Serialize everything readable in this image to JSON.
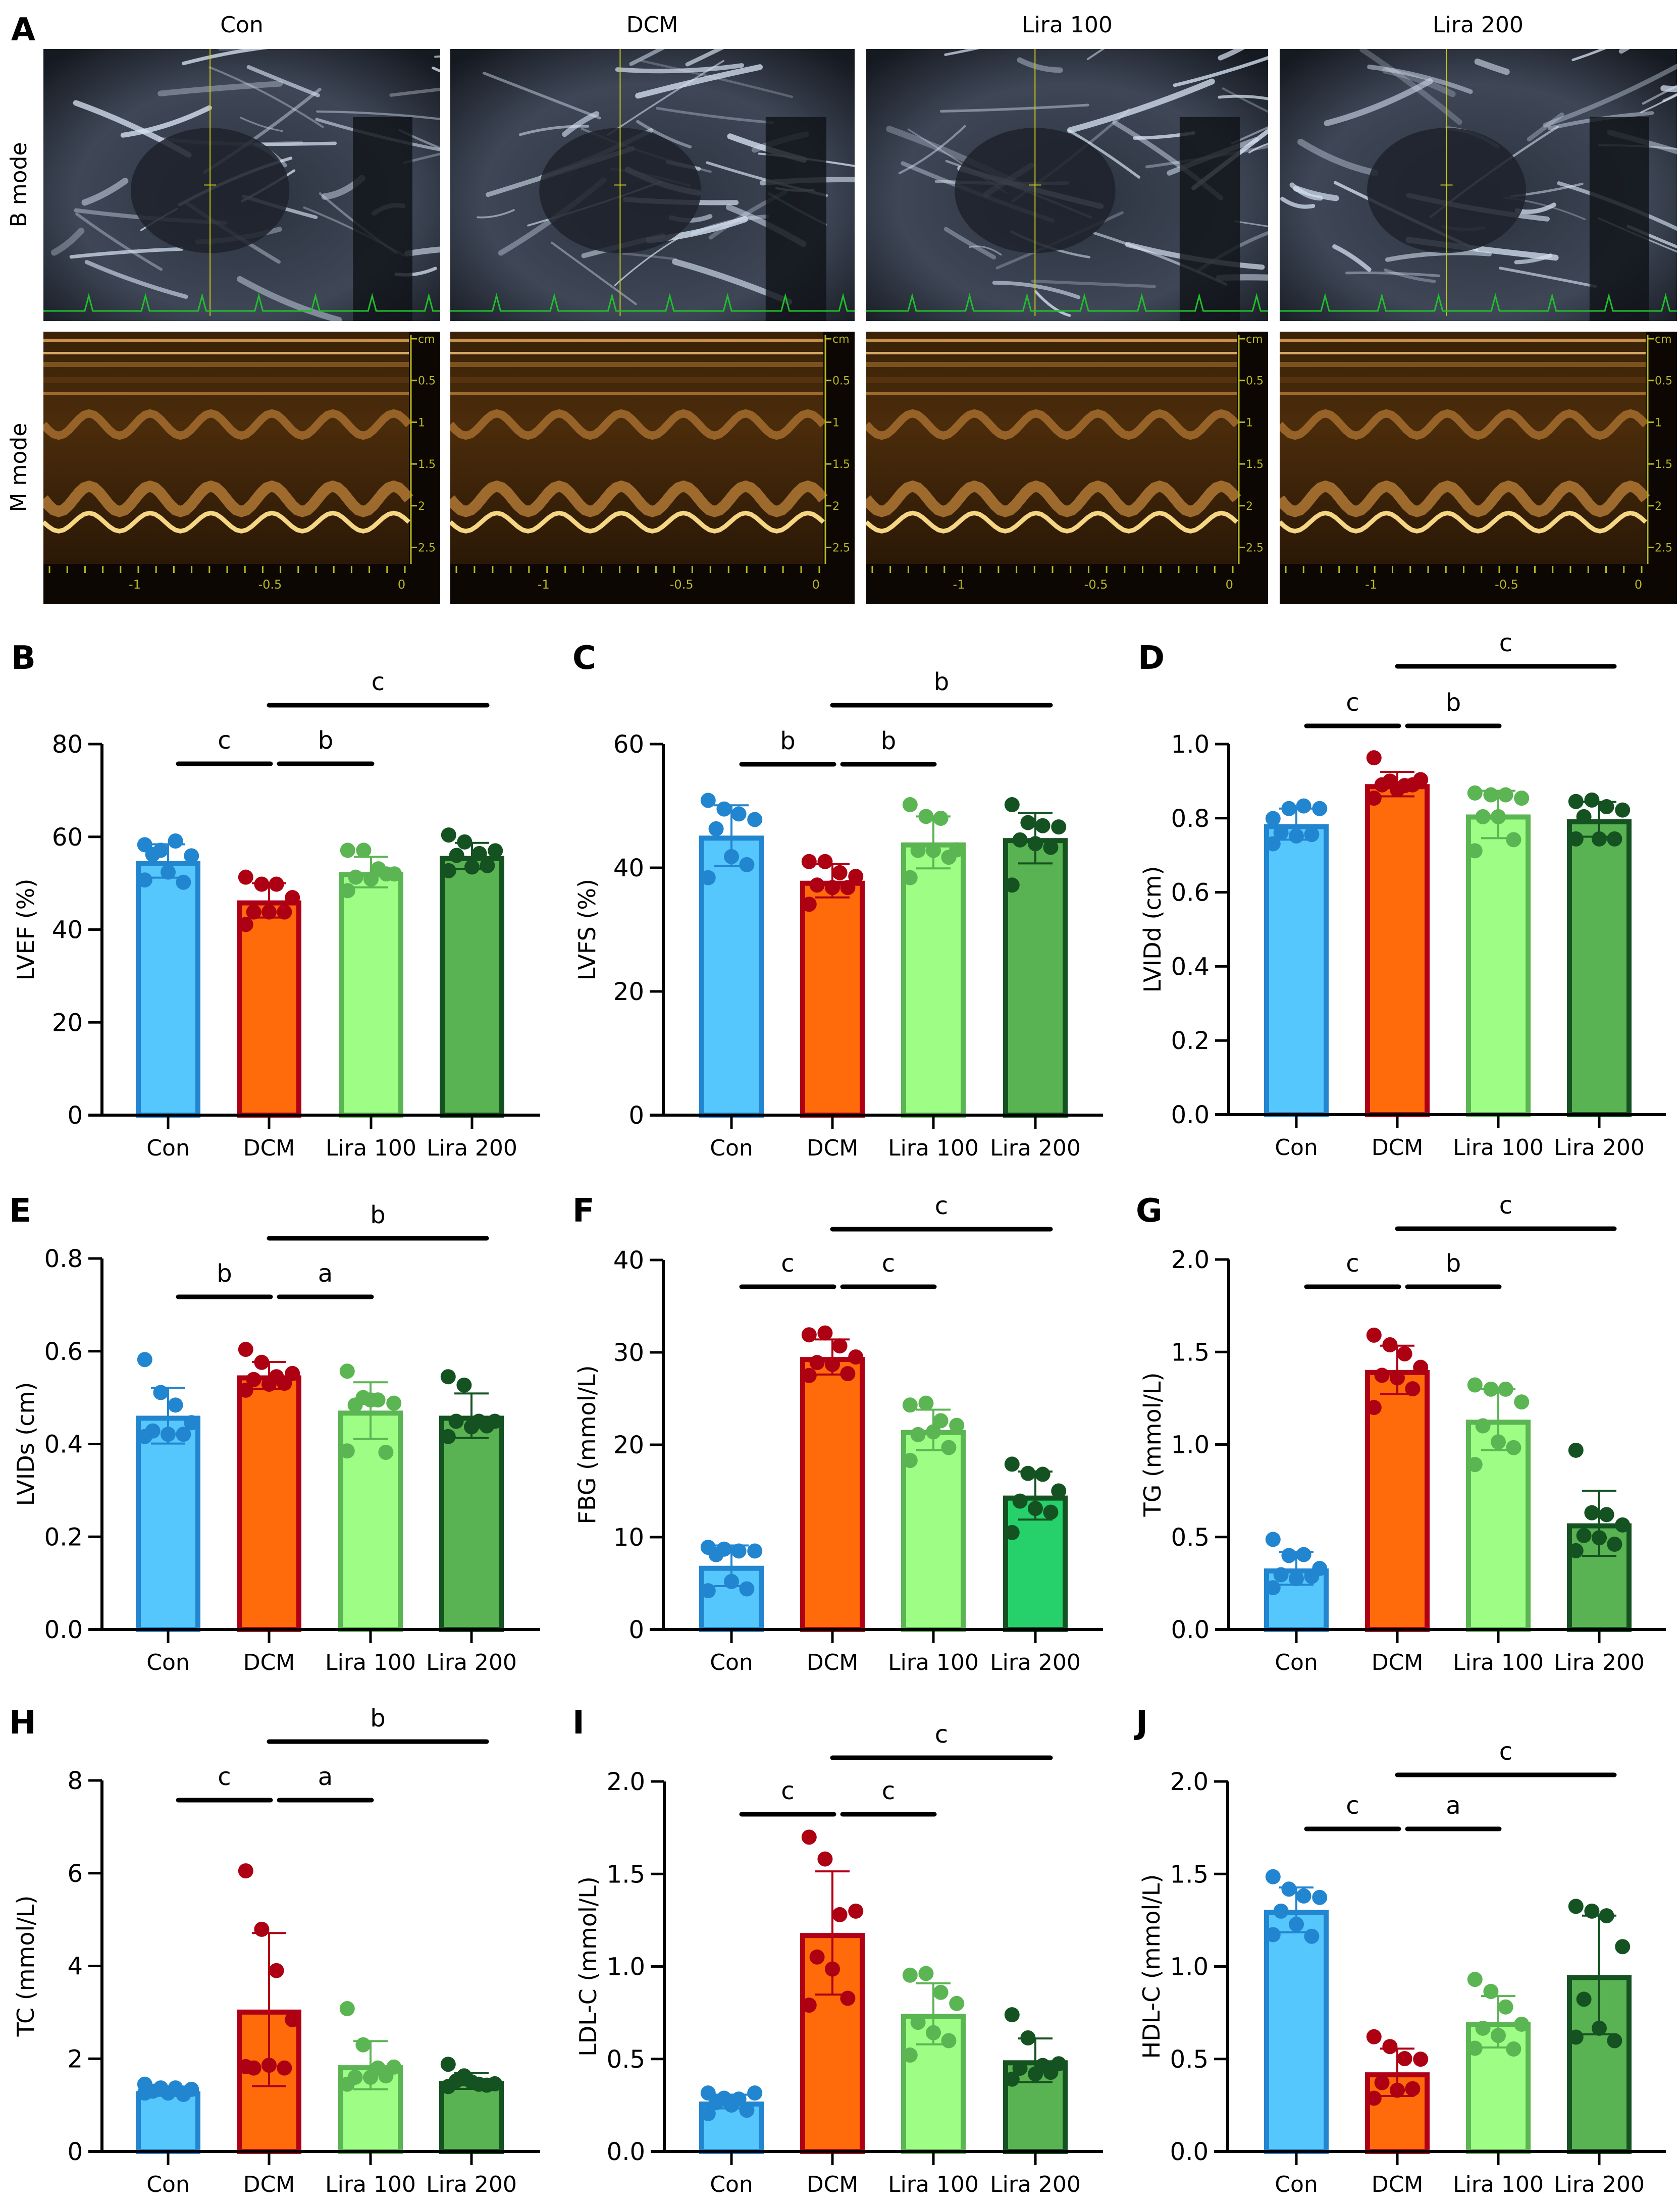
{
  "figure": {
    "panel_a": {
      "letter": "A",
      "columns": [
        "Con",
        "DCM",
        "Lira 100",
        "Lira 200"
      ],
      "rows": [
        "B mode",
        "M mode"
      ],
      "mmode_depth_ticks": [
        "cm",
        "0.5",
        "1",
        "1.5",
        "2",
        "2.5"
      ],
      "mmode_time_ticks": [
        "-1",
        "-0.5",
        "0"
      ]
    },
    "colors": {
      "Con": {
        "fill": "#55c7fc",
        "stroke": "#2285d0",
        "dot": "#2285d0"
      },
      "DCM": {
        "fill": "#ff6a0a",
        "stroke": "#b00016",
        "dot": "#ad0012"
      },
      "Lira 100": {
        "fill": "#9efd85",
        "stroke": "#5bb552",
        "dot": "#5bb552"
      },
      "Lira 200": {
        "fill": "#5ab352",
        "stroke": "#155221",
        "dot": "#155221"
      },
      "Lira 200 (F)": {
        "fill": "#26d06a",
        "stroke": "#155221",
        "dot": "#155221"
      }
    }
  },
  "chart_data": [
    {
      "panel": "B",
      "type": "bar",
      "ylabel": "LVEF (%)",
      "categories": [
        "Con",
        "DCM",
        "Lira 100",
        "Lira 200"
      ],
      "ylim": [
        0,
        80
      ],
      "yticks": [
        "0",
        "20",
        "40",
        "60",
        "80"
      ],
      "series": [
        {
          "name": "Con",
          "mean": 54.8,
          "sd": 3.6,
          "points": [
            58.3,
            57.1,
            59.1,
            55.9,
            56.2,
            52.4,
            50.2,
            50.7
          ]
        },
        {
          "name": "DCM",
          "mean": 46.3,
          "sd": 3.7,
          "points": [
            51.3,
            49.8,
            49.8,
            46.9,
            43.8,
            43.8,
            43.8,
            41.1
          ]
        },
        {
          "name": "Lira 100",
          "mean": 52.4,
          "sd": 3.3,
          "points": [
            57.1,
            57.1,
            53.1,
            52.0,
            51.3,
            50.9,
            52.0,
            48.4
          ]
        },
        {
          "name": "Lira 200",
          "mean": 55.9,
          "sd": 2.8,
          "points": [
            60.4,
            58.9,
            56.4,
            57.0,
            56.0,
            53.5,
            53.8,
            52.7
          ]
        }
      ],
      "significance": [
        {
          "from": "Con",
          "to": "DCM",
          "label": "c",
          "level": 1
        },
        {
          "from": "DCM",
          "to": "Lira 100",
          "label": "b",
          "level": 1
        },
        {
          "from": "DCM",
          "to": "Lira 200",
          "label": "c",
          "level": 2
        }
      ]
    },
    {
      "panel": "C",
      "type": "bar",
      "ylabel": "LVFS (%)",
      "categories": [
        "Con",
        "DCM",
        "Lira 100",
        "Lira 200"
      ],
      "ylim": [
        0,
        60
      ],
      "yticks": [
        "0",
        "20",
        "40",
        "60"
      ],
      "series": [
        {
          "name": "Con",
          "mean": 45.2,
          "sd": 4.9,
          "points": [
            50.9,
            49.5,
            48.7,
            47.8,
            46.3,
            41.8,
            40.5,
            38.4
          ]
        },
        {
          "name": "DCM",
          "mean": 37.9,
          "sd": 2.7,
          "points": [
            41.0,
            41.0,
            39.2,
            38.6,
            37.2,
            36.8,
            36.8,
            34.1
          ]
        },
        {
          "name": "Lira 100",
          "mean": 44.1,
          "sd": 4.2,
          "points": [
            50.2,
            48.3,
            48.0,
            42.9,
            42.8,
            42.8,
            41.7,
            38.4
          ]
        },
        {
          "name": "Lira 200",
          "mean": 44.8,
          "sd": 4.1,
          "points": [
            50.2,
            47.3,
            46.8,
            46.6,
            44.5,
            43.9,
            43.3,
            37.2
          ]
        }
      ],
      "significance": [
        {
          "from": "Con",
          "to": "DCM",
          "label": "b",
          "level": 1
        },
        {
          "from": "DCM",
          "to": "Lira 100",
          "label": "b",
          "level": 1
        },
        {
          "from": "DCM",
          "to": "Lira 200",
          "label": "b",
          "level": 2
        }
      ]
    },
    {
      "panel": "D",
      "type": "bar",
      "ylabel": "LVIDd (cm)",
      "categories": [
        "Con",
        "DCM",
        "Lira 100",
        "Lira 200"
      ],
      "ylim": [
        0,
        1.0
      ],
      "yticks": [
        "0.0",
        "0.2",
        "0.4",
        "0.6",
        "0.8",
        "1.0"
      ],
      "series": [
        {
          "name": "Con",
          "mean": 0.784,
          "sd": 0.042,
          "points": [
            0.799,
            0.826,
            0.833,
            0.826,
            0.761,
            0.752,
            0.756,
            0.731
          ]
        },
        {
          "name": "DCM",
          "mean": 0.892,
          "sd": 0.033,
          "points": [
            0.963,
            0.9,
            0.888,
            0.904,
            0.89,
            0.877,
            0.89,
            0.854
          ]
        },
        {
          "name": "Lira 100",
          "mean": 0.81,
          "sd": 0.064,
          "points": [
            0.868,
            0.863,
            0.863,
            0.854,
            0.804,
            0.804,
            0.742,
            0.712
          ]
        },
        {
          "name": "Lira 200",
          "mean": 0.797,
          "sd": 0.047,
          "points": [
            0.845,
            0.849,
            0.831,
            0.822,
            0.804,
            0.744,
            0.744,
            0.744
          ]
        }
      ],
      "significance": [
        {
          "from": "Con",
          "to": "DCM",
          "label": "c",
          "level": 1
        },
        {
          "from": "DCM",
          "to": "Lira 100",
          "label": "b",
          "level": 1
        },
        {
          "from": "DCM",
          "to": "Lira 200",
          "label": "c",
          "level": 2
        }
      ]
    },
    {
      "panel": "E",
      "type": "bar",
      "ylabel": "LVIDs (cm)",
      "categories": [
        "Con",
        "DCM",
        "Lira 100",
        "Lira 200"
      ],
      "ylim": [
        0,
        0.8
      ],
      "yticks": [
        "0.0",
        "0.2",
        "0.4",
        "0.6",
        "0.8"
      ],
      "series": [
        {
          "name": "Con",
          "mean": 0.461,
          "sd": 0.06,
          "points": [
            0.582,
            0.511,
            0.484,
            0.446,
            0.428,
            0.421,
            0.421,
            0.416
          ]
        },
        {
          "name": "DCM",
          "mean": 0.548,
          "sd": 0.029,
          "points": [
            0.604,
            0.576,
            0.545,
            0.552,
            0.539,
            0.529,
            0.531,
            0.516
          ]
        },
        {
          "name": "Lira 100",
          "mean": 0.472,
          "sd": 0.061,
          "points": [
            0.557,
            0.5,
            0.495,
            0.488,
            0.484,
            0.495,
            0.382,
            0.385
          ]
        },
        {
          "name": "Lira 200",
          "mean": 0.461,
          "sd": 0.048,
          "points": [
            0.545,
            0.527,
            0.449,
            0.449,
            0.449,
            0.437,
            0.439,
            0.416
          ]
        }
      ],
      "significance": [
        {
          "from": "Con",
          "to": "DCM",
          "label": "b",
          "level": 1
        },
        {
          "from": "DCM",
          "to": "Lira 100",
          "label": "a",
          "level": 1
        },
        {
          "from": "DCM",
          "to": "Lira 200",
          "label": "b",
          "level": 2
        }
      ]
    },
    {
      "panel": "F",
      "type": "bar",
      "ylabel": "FBG (mmol/L)",
      "categories": [
        "Con",
        "DCM",
        "Lira 100",
        "Lira 200"
      ],
      "ylim": [
        0,
        40
      ],
      "yticks": [
        "0",
        "10",
        "20",
        "30",
        "40"
      ],
      "series": [
        {
          "name": "Con",
          "mean": 6.9,
          "sd": 2.2,
          "points": [
            8.9,
            8.7,
            8.5,
            8.5,
            8.1,
            5.2,
            4.4,
            4.2
          ]
        },
        {
          "name": "DCM",
          "mean": 29.5,
          "sd": 1.9,
          "points": [
            31.9,
            32.1,
            30.7,
            29.5,
            28.9,
            28.7,
            27.7,
            27.5
          ]
        },
        {
          "name": "Lira 100",
          "mean": 21.6,
          "sd": 2.2,
          "points": [
            24.3,
            24.5,
            22.6,
            22.1,
            21.1,
            21.4,
            19.7,
            18.3
          ]
        },
        {
          "name": "Lira 200",
          "mean": 14.5,
          "sd": 2.6,
          "points": [
            17.9,
            16.9,
            16.8,
            15.0,
            13.9,
            13.1,
            12.7,
            10.5
          ]
        }
      ],
      "significance": [
        {
          "from": "Con",
          "to": "DCM",
          "label": "c",
          "level": 1
        },
        {
          "from": "DCM",
          "to": "Lira 100",
          "label": "c",
          "level": 1
        },
        {
          "from": "DCM",
          "to": "Lira 200",
          "label": "c",
          "level": 2
        }
      ]
    },
    {
      "panel": "G",
      "type": "bar",
      "ylabel": "TG (mmol/L)",
      "categories": [
        "Con",
        "DCM",
        "Lira 100",
        "Lira 200"
      ],
      "ylim": [
        0,
        2.0
      ],
      "yticks": [
        "0.0",
        "0.5",
        "1.0",
        "1.5",
        "2.0"
      ],
      "series": [
        {
          "name": "Con",
          "mean": 0.33,
          "sd": 0.088,
          "points": [
            0.487,
            0.4,
            0.405,
            0.33,
            0.296,
            0.275,
            0.287,
            0.226
          ]
        },
        {
          "name": "DCM",
          "mean": 1.403,
          "sd": 0.131,
          "points": [
            1.591,
            1.539,
            1.49,
            1.417,
            1.374,
            1.36,
            1.301,
            1.2
          ]
        },
        {
          "name": "Lira 100",
          "mean": 1.134,
          "sd": 0.165,
          "points": [
            1.322,
            1.299,
            1.299,
            1.23,
            1.101,
            1.014,
            0.983,
            0.892
          ]
        },
        {
          "name": "Lira 200",
          "mean": 0.574,
          "sd": 0.176,
          "points": [
            0.969,
            0.631,
            0.621,
            0.565,
            0.508,
            0.496,
            0.461,
            0.426
          ]
        }
      ],
      "significance": [
        {
          "from": "Con",
          "to": "DCM",
          "label": "c",
          "level": 1
        },
        {
          "from": "DCM",
          "to": "Lira 100",
          "label": "b",
          "level": 1
        },
        {
          "from": "DCM",
          "to": "Lira 200",
          "label": "c",
          "level": 2
        }
      ]
    },
    {
      "panel": "H",
      "type": "bar",
      "ylabel": "TC (mmol/L)",
      "categories": [
        "Con",
        "DCM",
        "Lira 100",
        "Lira 200"
      ],
      "ylim": [
        0,
        8
      ],
      "yticks": [
        "0",
        "2",
        "4",
        "6",
        "8"
      ],
      "series": [
        {
          "name": "Con",
          "mean": 1.3,
          "sd": 0.1,
          "points": [
            1.45,
            1.37,
            1.37,
            1.34,
            1.3,
            1.26,
            1.23,
            1.26
          ]
        },
        {
          "name": "DCM",
          "mean": 3.06,
          "sd": 1.65,
          "points": [
            6.05,
            4.79,
            3.9,
            2.84,
            1.8,
            1.86,
            1.8,
            1.83
          ]
        },
        {
          "name": "Lira 100",
          "mean": 1.86,
          "sd": 0.52,
          "points": [
            3.08,
            2.3,
            1.8,
            1.82,
            1.6,
            1.6,
            1.63,
            1.45
          ]
        },
        {
          "name": "Lira 200",
          "mean": 1.52,
          "sd": 0.17,
          "points": [
            1.88,
            1.63,
            1.45,
            1.46,
            1.52,
            1.5,
            1.43,
            1.4
          ]
        }
      ],
      "significance": [
        {
          "from": "Con",
          "to": "DCM",
          "label": "c",
          "level": 1
        },
        {
          "from": "DCM",
          "to": "Lira 100",
          "label": "a",
          "level": 1
        },
        {
          "from": "DCM",
          "to": "Lira 200",
          "label": "b",
          "level": 2
        }
      ]
    },
    {
      "panel": "I",
      "type": "bar",
      "ylabel": "LDL-C (mmol/L)",
      "categories": [
        "Con",
        "DCM",
        "Lira 100",
        "Lira 200"
      ],
      "ylim": [
        0,
        2.0
      ],
      "yticks": [
        "0.0",
        "0.5",
        "1.0",
        "1.5",
        "2.0"
      ],
      "series": [
        {
          "name": "Con",
          "mean": 0.27,
          "sd": 0.037,
          "points": [
            0.316,
            0.288,
            0.283,
            0.316,
            0.264,
            0.251,
            0.223,
            0.205
          ]
        },
        {
          "name": "DCM",
          "mean": 1.181,
          "sd": 0.333,
          "points": [
            1.699,
            1.581,
            1.28,
            1.299,
            1.051,
            0.986,
            0.828,
            0.791
          ]
        },
        {
          "name": "Lira 100",
          "mean": 0.744,
          "sd": 0.165,
          "points": [
            0.953,
            0.962,
            0.86,
            0.8,
            0.698,
            0.642,
            0.599,
            0.521
          ]
        },
        {
          "name": "Lira 200",
          "mean": 0.493,
          "sd": 0.118,
          "points": [
            0.739,
            0.614,
            0.465,
            0.474,
            0.45,
            0.419,
            0.428,
            0.391
          ]
        }
      ],
      "significance": [
        {
          "from": "Con",
          "to": "DCM",
          "label": "c",
          "level": 1
        },
        {
          "from": "DCM",
          "to": "Lira 100",
          "label": "c",
          "level": 1
        },
        {
          "from": "DCM",
          "to": "Lira 200",
          "label": "c",
          "level": 2
        }
      ]
    },
    {
      "panel": "J",
      "type": "bar",
      "ylabel": "HDL-C (mmol/L)",
      "categories": [
        "Con",
        "DCM",
        "Lira 100",
        "Lira 200"
      ],
      "ylim": [
        0,
        2.0
      ],
      "yticks": [
        "0.0",
        "0.5",
        "1.0",
        "1.5",
        "2.0"
      ],
      "series": [
        {
          "name": "Con",
          "mean": 1.306,
          "sd": 0.121,
          "points": [
            1.485,
            1.418,
            1.381,
            1.373,
            1.299,
            1.228,
            1.163,
            1.172
          ]
        },
        {
          "name": "DCM",
          "mean": 0.428,
          "sd": 0.128,
          "points": [
            0.62,
            0.567,
            0.502,
            0.499,
            0.372,
            0.331,
            0.339,
            0.288
          ]
        },
        {
          "name": "Lira 100",
          "mean": 0.701,
          "sd": 0.139,
          "points": [
            0.93,
            0.865,
            0.781,
            0.688,
            0.666,
            0.627,
            0.554,
            0.558
          ]
        },
        {
          "name": "Lira 200",
          "mean": 0.954,
          "sd": 0.321,
          "points": [
            1.325,
            1.299,
            1.274,
            1.107,
            0.823,
            0.666,
            0.599,
            0.618
          ]
        }
      ],
      "significance": [
        {
          "from": "Con",
          "to": "DCM",
          "label": "c",
          "level": 1
        },
        {
          "from": "DCM",
          "to": "Lira 100",
          "label": "a",
          "level": 1
        },
        {
          "from": "DCM",
          "to": "Lira 200",
          "label": "c",
          "level": 2
        }
      ]
    }
  ]
}
